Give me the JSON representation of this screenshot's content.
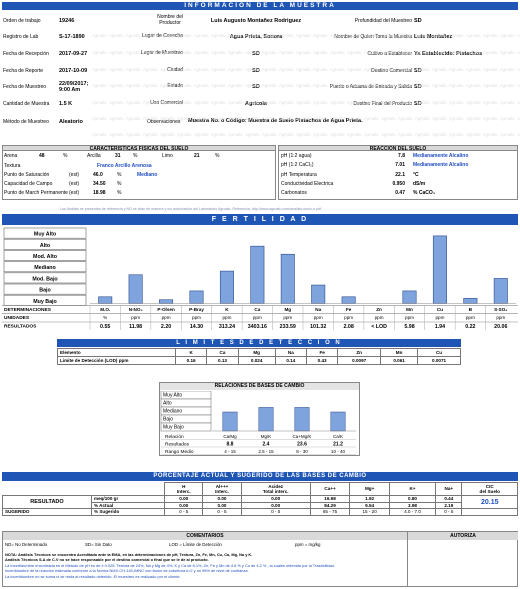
{
  "title": "INFORMACIÓN DE LA MUESTRA",
  "info_left": [
    {
      "label": "Orden de trabajo",
      "value": "19246"
    },
    {
      "label": "Registro de Lab",
      "value": "S-17-1890"
    },
    {
      "label": "Fecha de Recepción",
      "value": "2017-09-27"
    },
    {
      "label": "Fecha de Reporte",
      "value": "2017-10-09"
    },
    {
      "label": "Fecha de Muestreo",
      "value": "22/09/2017;\n9:00 Am"
    },
    {
      "label": "Cantidad de Muestra",
      "value": "1.5 K"
    },
    {
      "label": "Método de Muestreo",
      "value": "Aleatorio"
    }
  ],
  "info_mid": [
    {
      "label": "Nombre del\nProductor",
      "value": "Luis Augusto Montañez Rodriguez"
    },
    {
      "label": "Lugar de Cosecha",
      "value": "Agua Prieta, Sonora"
    },
    {
      "label": "Lugar de Muestreo",
      "value": "SD"
    },
    {
      "label": "Ciudad",
      "value": "SD"
    },
    {
      "label": "Estado",
      "value": "SD"
    },
    {
      "label": "Uso Comercial",
      "value": "Agricola"
    }
  ],
  "info_right": [
    {
      "label": "Profundidad del Muestreo",
      "value": "SD"
    },
    {
      "label": "Nombre de Quien Toma la Muestra",
      "value": "Luis Montañez"
    },
    {
      "label": "Cultivo a Establecer",
      "value": "Ya Establecido: Pistachos"
    },
    {
      "label": "Destino Comercial",
      "value": "SD"
    },
    {
      "label": "Puerto o Aduana de Entrada y Salida",
      "value": "SD"
    },
    {
      "label": "Destino Final del Producto",
      "value": "SD"
    }
  ],
  "observaciones": {
    "label": "Observaciones",
    "value": "Muestra No. o Código: Muestra de Suelo Pistachos de Agua Prieta."
  },
  "watermark": "Agroalu",
  "fisicas": {
    "title": "CARACTERISTICAS FISICAS DEL SUELO",
    "arena": "Arena",
    "arena_v": "48",
    "pct": "%",
    "arcilla": "Arcilla",
    "arcilla_v": "31",
    "limo": "Limo",
    "limo_v": "21",
    "textura": "Textura",
    "textura_v": "Franco Arcillo Arenosa",
    "rows": [
      {
        "label": "Punto de Saturación",
        "est": "(est)",
        "val": "46.0",
        "unit": "%",
        "extra": "Mediano"
      },
      {
        "label": "Capacidad de Campo",
        "est": "(est)",
        "val": "34.50",
        "unit": "%",
        "extra": ""
      },
      {
        "label": "Punto de March Permanente",
        "est": "(est)",
        "val": "18.98",
        "unit": "%",
        "extra": ""
      }
    ]
  },
  "reaccion": {
    "title": "REACCION DEL SUELO",
    "rows": [
      {
        "label": "pH (1:2 agua)",
        "val": "7.8",
        "extra": "Medianamente Alcalino"
      },
      {
        "label": "pH (1:2 CaCl₂)",
        "val": "7.01",
        "extra": "Medianamente Alcalino"
      },
      {
        "label": "pH Temperatura",
        "val": "22.1",
        "extra": "°C"
      },
      {
        "label": "Conductividad Electrica",
        "val": "0.950",
        "extra": "dS/m"
      },
      {
        "label": "Carbonatos",
        "val": "0.47",
        "extra": "% CaCO₃"
      }
    ]
  },
  "note_line": "Los Análisis se presentan de referencia y NO se citan de manera y sin autorización del Laboratorio Agroalu. Referencia: http://www.agroalu.com/analisis-suelo-n.pdf",
  "fertilidad": {
    "title": "F E R T I L I D A D",
    "levels": [
      "Muy Alto",
      "Alto",
      "Mod. Alto",
      "Mediano",
      "Mod. Bajo",
      "Bajo",
      "Muy Bajo"
    ],
    "row_labels": {
      "det": "DETERMINACIONES",
      "units": "UNIDADES",
      "res": "RESULTADOS"
    },
    "columns": [
      {
        "name": "M.O.",
        "unit": "%",
        "result": "0.55",
        "level": 0.09
      },
      {
        "name": "N-NO₃",
        "unit": "ppm",
        "result": "11.98",
        "level": 0.39
      },
      {
        "name": "P-Olsen",
        "unit": "ppm",
        "result": "2.20",
        "level": 0.05
      },
      {
        "name": "P-Bray",
        "unit": "ppm",
        "result": "14.30",
        "level": 0.17
      },
      {
        "name": "K",
        "unit": "ppm",
        "result": "313.24",
        "level": 0.44
      },
      {
        "name": "Ca",
        "unit": "ppm",
        "result": "3403.16",
        "level": 0.78
      },
      {
        "name": "Mg",
        "unit": "ppm",
        "result": "233.59",
        "level": 0.67
      },
      {
        "name": "Na",
        "unit": "ppm",
        "result": "101.32",
        "level": 0.25
      },
      {
        "name": "Fe",
        "unit": "ppm",
        "result": "2.08",
        "level": 0.09
      },
      {
        "name": "Zn",
        "unit": "ppm",
        "result": "< LOD",
        "level": 0.0
      },
      {
        "name": "Mn",
        "unit": "ppm",
        "result": "5.98",
        "level": 0.17
      },
      {
        "name": "Cu",
        "unit": "ppm",
        "result": "1.94",
        "level": 0.92
      },
      {
        "name": "B",
        "unit": "ppm",
        "result": "0.22",
        "level": 0.07
      },
      {
        "name": "S-SO₄",
        "unit": "ppm",
        "result": "20.06",
        "level": 0.34
      }
    ]
  },
  "limites": {
    "title": "L I M I T E S   D E   D E T E C C I O N",
    "header": [
      "Elemento",
      "K",
      "Ca",
      "Mg",
      "Na",
      "Fe",
      "Zn",
      "Mn",
      "Cu"
    ],
    "row": [
      "Limite de Detección (LOD) ppm",
      "0.16",
      "0.13",
      "0.024",
      "0.14",
      "0.43",
      "0.0097",
      "0.061",
      "0.0071"
    ]
  },
  "relaciones": {
    "title": "RELACIONES DE BASES DE CAMBIO",
    "levels": [
      "Muy Alto",
      "Alto",
      "Mediano",
      "Bajo",
      "Muy Bajo"
    ],
    "labels": [
      "Relación",
      "Resultados",
      "Rango Medio"
    ],
    "cols": [
      {
        "name": "Ca/Mg",
        "result": "8.8",
        "rango": "4 - 15",
        "level": 0.5
      },
      {
        "name": "Mg/K",
        "result": "2.4",
        "rango": "2.5 - 15",
        "level": 0.62
      },
      {
        "name": "Ca+Mg/K",
        "result": "23.6",
        "rango": "8 - 30",
        "level": 0.62
      },
      {
        "name": "Ca/K",
        "result": "21.2",
        "rango": "10 - 40",
        "level": 0.5
      }
    ]
  },
  "porcentaje": {
    "title": "PORCENTAJE ACTUAL Y SUGERIDO DE LAS BASES DE CAMBIO",
    "headers": [
      "H\nInterc.",
      "Al+++\nInterc.",
      "Acidez\nTotal interc.",
      "Ca++",
      "Mg+",
      "K+",
      "Na+",
      "CIC\ndel Suelo"
    ],
    "resultado": "RESULTADO",
    "sugerido": "SUGERIDO",
    "rows": [
      {
        "unit": "meq/100 gr",
        "vals": [
          "0.00",
          "0.00",
          "0.00",
          "16.98",
          "1.92",
          "0.80",
          "0.44"
        ]
      },
      {
        "unit": "% Actual",
        "vals": [
          "0.00",
          "0.00",
          "0.00",
          "84.29",
          "9.54",
          "3.98",
          "2.19"
        ]
      },
      {
        "unit": "% Sugerido",
        "vals": [
          "0 - 5",
          "0 - 5",
          "0 - 5",
          "65 - 75",
          "15 - 20",
          "4.0 - 7.0",
          "0 - 5"
        ]
      }
    ],
    "cic": "20.15"
  },
  "comentarios": {
    "title": "COMENTARIOS",
    "autoriza": "AUTORIZA",
    "legend": [
      "ND= No Determinado",
      "SD= Sin Dato",
      "LOD = Límite de Detección",
      "ppm = mg/kg"
    ],
    "nota1": "NOTA: Análisis Técnicos se encuentra Acreditado ante la EMA, en las determinaciones de pH, Textura, Zn, Fe, Mn, Cu, Ca, Mg, Na y K.",
    "nota2": "Análisis Técnicos S.A de C.V no se hace responsable por el destino comercial o final que se le de al producto.",
    "nota3": "La Incertidumbre encontrada en el Metodo de pH es de ± 0.025. Textura de 24%, Na y Mg de 4%, K y Ca de 6.1%, Zn, Fe y Mn de 4.6 % y Cu de 4.2 % , la cuales obtenida por la Trazabilidad.",
    "nota4": "Incertidumbre de la reacción estimada conforme a la Norma NMX-CH-140-IMNC con factor de cobertura k=2 y un 95% de nivel de confianza.",
    "nota5": "La incertidumbre no se suma ni se resta al resultado obtenido. El muestreo es realizado por el cliente."
  },
  "colors": {
    "accent": "#1f55b5",
    "bar": "#7ea3dd",
    "bar_border": "#2b4b8c"
  }
}
